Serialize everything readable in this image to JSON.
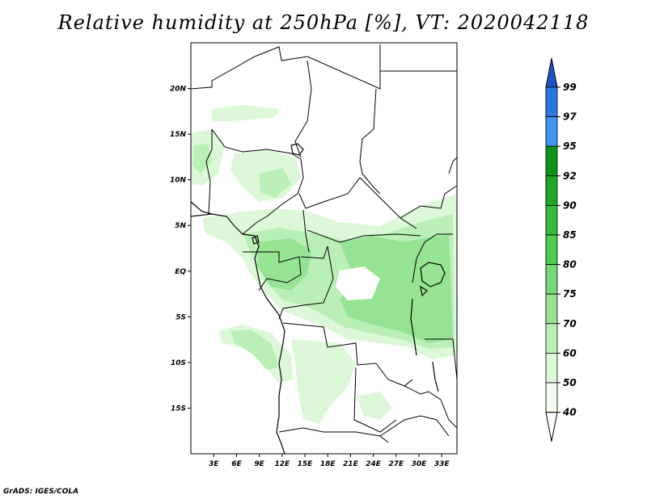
{
  "title": "Relative humidity at 250hPa [%], VT: 2020042118",
  "credit": "GrADS: IGES/COLA",
  "map": {
    "lon_range": [
      0,
      35
    ],
    "lat_range": [
      -20,
      25
    ],
    "lon_ticks": [
      "3E",
      "6E",
      "9E",
      "12E",
      "15E",
      "18E",
      "21E",
      "24E",
      "27E",
      "30E",
      "33E"
    ],
    "lat_ticks": [
      "20N",
      "15N",
      "10N",
      "5N",
      "EQ",
      "5S",
      "10S",
      "15S"
    ]
  },
  "colorbar": {
    "labels": [
      "99",
      "97",
      "95",
      "92",
      "90",
      "85",
      "80",
      "75",
      "70",
      "60",
      "50",
      "40"
    ],
    "colors": [
      "#1e50c8",
      "#2a78e0",
      "#3c96ee",
      "#0b9616",
      "#1ea823",
      "#36bb3a",
      "#4ccd4c",
      "#73d876",
      "#96e394",
      "#bbefb8",
      "#ddf8d8",
      "#f2fcef"
    ]
  },
  "legend_swatches": {
    "rh_40": "#f2fcef",
    "rh_50": "#ddf8d8",
    "rh_60": "#bbefb8"
  }
}
